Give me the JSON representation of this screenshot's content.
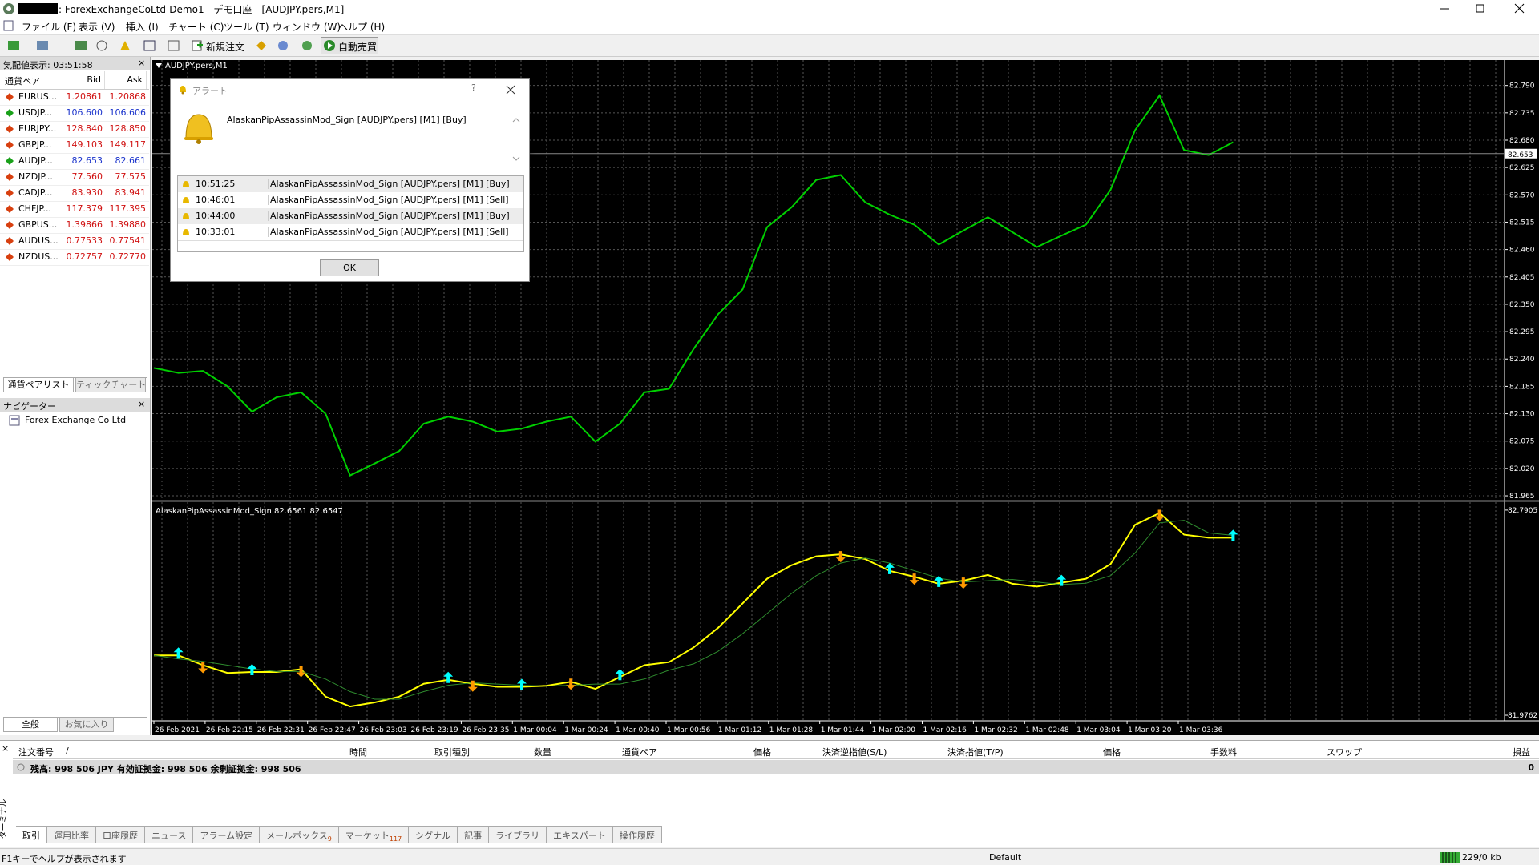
{
  "window": {
    "title": ": ForexExchangeCoLtd-Demo1 - デモ口座 - [AUDJPY.pers,M1]"
  },
  "menu": [
    "ファイル (F)",
    "表示 (V)",
    "挿入 (I)",
    "チャート (C)",
    "ツール (T)",
    "ウィンドウ (W)",
    "ヘルプ (H)"
  ],
  "toolbar": {
    "new_order": "新規注文",
    "auto_trading": "自動売買"
  },
  "market_watch": {
    "title": "気配値表示: 03:51:58",
    "columns": [
      "通貨ペア",
      "Bid",
      "Ask"
    ],
    "rows": [
      {
        "symbol": "EURUS...",
        "bid": "1.20861",
        "ask": "1.20868",
        "trend": "down"
      },
      {
        "symbol": "USDJP...",
        "bid": "106.600",
        "ask": "106.606",
        "trend": "up"
      },
      {
        "symbol": "EURJPY...",
        "bid": "128.840",
        "ask": "128.850",
        "trend": "down"
      },
      {
        "symbol": "GBPJP...",
        "bid": "149.103",
        "ask": "149.117",
        "trend": "down"
      },
      {
        "symbol": "AUDJP...",
        "bid": "82.653",
        "ask": "82.661",
        "trend": "up"
      },
      {
        "symbol": "NZDJP...",
        "bid": "77.560",
        "ask": "77.575",
        "trend": "down"
      },
      {
        "symbol": "CADJP...",
        "bid": "83.930",
        "ask": "83.941",
        "trend": "down"
      },
      {
        "symbol": "CHFJP...",
        "bid": "117.379",
        "ask": "117.395",
        "trend": "down"
      },
      {
        "symbol": "GBPUS...",
        "bid": "1.39866",
        "ask": "1.39880",
        "trend": "down"
      },
      {
        "symbol": "AUDUS...",
        "bid": "0.77533",
        "ask": "0.77541",
        "trend": "down"
      },
      {
        "symbol": "NZDUS...",
        "bid": "0.72757",
        "ask": "0.72770",
        "trend": "down"
      }
    ],
    "tabs": [
      "通貨ペアリスト",
      "ティックチャート"
    ]
  },
  "navigator": {
    "title": "ナビゲーター",
    "item": "Forex Exchange Co Ltd",
    "tabs": [
      "全般",
      "お気に入り"
    ]
  },
  "chart_data": [
    {
      "type": "line",
      "title": "AUDJPY.pers,M1",
      "grid": true,
      "series": [
        {
          "color": "#00d000",
          "values": [
            82.222,
            82.212,
            82.216,
            82.185,
            82.134,
            82.163,
            82.173,
            82.13,
            82.006,
            82.03,
            82.055,
            82.11,
            82.124,
            82.114,
            82.094,
            82.1,
            82.114,
            82.124,
            82.074,
            82.11,
            82.173,
            82.18,
            82.26,
            82.33,
            82.38,
            82.505,
            82.545,
            82.6,
            82.61,
            82.555,
            82.53,
            82.51,
            82.47,
            82.498,
            82.525,
            82.495,
            82.465,
            82.488,
            82.51,
            82.58,
            82.7,
            82.77,
            82.66,
            82.65,
            82.676
          ]
        }
      ],
      "current_price": 82.653,
      "ylim": [
        81.957,
        82.841
      ],
      "yticks": [
        {
          "value": 82.79,
          "label": "82.790"
        },
        {
          "value": 82.735,
          "label": "82.735"
        },
        {
          "value": 82.68,
          "label": "82.680"
        },
        {
          "value": 82.625,
          "label": "82.625"
        },
        {
          "value": 82.57,
          "label": "82.570"
        },
        {
          "value": 82.515,
          "label": "82.515"
        },
        {
          "value": 82.46,
          "label": "82.460"
        },
        {
          "value": 82.405,
          "label": "82.405"
        },
        {
          "value": 82.35,
          "label": "82.350"
        },
        {
          "value": 82.295,
          "label": "82.295"
        },
        {
          "value": 82.24,
          "label": "82.240"
        },
        {
          "value": 82.185,
          "label": "82.185"
        },
        {
          "value": 82.13,
          "label": "82.130"
        },
        {
          "value": 82.075,
          "label": "82.075"
        },
        {
          "value": 82.02,
          "label": "82.020"
        },
        {
          "value": 81.965,
          "label": "81.965"
        }
      ],
      "time_labels": [
        "26 Feb 2021",
        "26 Feb 22:15",
        "26 Feb 22:31",
        "26 Feb 22:47",
        "26 Feb 23:03",
        "26 Feb 23:19",
        "26 Feb 23:35",
        "1 Mar 00:04",
        "1 Mar 00:24",
        "1 Mar 00:40",
        "1 Mar 00:56",
        "1 Mar 01:12",
        "1 Mar 01:28",
        "1 Mar 01:44",
        "1 Mar 02:00",
        "1 Mar 02:16",
        "1 Mar 02:32",
        "1 Mar 02:48",
        "1 Mar 03:04",
        "1 Mar 03:20",
        "1 Mar 03:36"
      ]
    },
    {
      "type": "line",
      "title": "AlaskanPipAssassinMod_Sign",
      "legend_values": [
        82.6561,
        82.6547
      ],
      "series": [
        {
          "color": "#ffff00",
          "values": [
            82.214,
            82.214,
            82.175,
            82.144,
            82.148,
            82.148,
            82.159,
            82.05,
            82.011,
            82.027,
            82.05,
            82.101,
            82.117,
            82.101,
            82.089,
            82.089,
            82.093,
            82.109,
            82.081,
            82.128,
            82.175,
            82.187,
            82.245,
            82.323,
            82.42,
            82.518,
            82.572,
            82.607,
            82.615,
            82.596,
            82.549,
            82.526,
            82.498,
            82.51,
            82.533,
            82.498,
            82.487,
            82.502,
            82.518,
            82.576,
            82.732,
            82.779,
            82.693,
            82.681,
            82.681
          ]
        },
        {
          "color": "#2e8b2e",
          "values": [
            82.214,
            82.2,
            82.19,
            82.175,
            82.16,
            82.15,
            82.15,
            82.12,
            82.07,
            82.04,
            82.04,
            82.07,
            82.095,
            82.105,
            82.1,
            82.095,
            82.092,
            82.095,
            82.1,
            82.1,
            82.12,
            82.155,
            82.18,
            82.23,
            82.3,
            82.38,
            82.46,
            82.53,
            82.58,
            82.6,
            82.58,
            82.55,
            82.52,
            82.505,
            82.51,
            82.515,
            82.505,
            82.495,
            82.5,
            82.53,
            82.62,
            82.74,
            82.75,
            82.7,
            82.69
          ]
        },
        {
          "color": "#00ffff",
          "marker": "arrow-up",
          "values": [
            null,
            82.214,
            null,
            null,
            82.148,
            null,
            null,
            null,
            null,
            null,
            null,
            null,
            82.117,
            null,
            null,
            82.089,
            null,
            null,
            null,
            82.128,
            null,
            null,
            null,
            null,
            null,
            null,
            null,
            null,
            null,
            null,
            82.549,
            null,
            82.498,
            null,
            null,
            null,
            null,
            82.502,
            null,
            null,
            null,
            null,
            null,
            null,
            82.681
          ]
        },
        {
          "color": "#ff9900",
          "marker": "arrow-down",
          "values": [
            null,
            null,
            82.175,
            null,
            null,
            null,
            82.159,
            null,
            null,
            null,
            null,
            null,
            null,
            82.101,
            null,
            null,
            null,
            82.109,
            null,
            null,
            null,
            null,
            null,
            null,
            null,
            null,
            null,
            null,
            82.615,
            null,
            null,
            82.526,
            null,
            82.51,
            null,
            null,
            null,
            null,
            null,
            null,
            null,
            82.779,
            null,
            null,
            null
          ]
        }
      ],
      "ylim": [
        81.954,
        82.822
      ],
      "yticks": [
        82.7905,
        81.9762
      ]
    }
  ],
  "alert": {
    "title": "アラート",
    "message": "AlaskanPipAssassinMod_Sign  [AUDJPY.pers] [M1] [Buy]",
    "log": [
      {
        "time": "10:51:25",
        "message": "AlaskanPipAssassinMod_Sign  [AUDJPY.pers] [M1] [Buy]"
      },
      {
        "time": "10:46:01",
        "message": "AlaskanPipAssassinMod_Sign  [AUDJPY.pers] [M1] [Sell]"
      },
      {
        "time": "10:44:00",
        "message": "AlaskanPipAssassinMod_Sign  [AUDJPY.pers] [M1] [Buy]"
      },
      {
        "time": "10:33:01",
        "message": "AlaskanPipAssassinMod_Sign  [AUDJPY.pers] [M1] [Sell]"
      }
    ],
    "button": "OK"
  },
  "terminal": {
    "side_label": "ターミナル",
    "sort_mark": "/",
    "columns": [
      "注文番号",
      "時間",
      "取引種別",
      "数量",
      "通貨ペア",
      "価格",
      "決済逆指値(S/L)",
      "決済指値(T/P)",
      "価格",
      "手数料",
      "スワップ",
      "損益"
    ],
    "balance": "残高: 998 506 JPY  有効証拠金: 998 506  余剰証拠金: 998 506",
    "profit": 0,
    "tabs": [
      {
        "label": "取引"
      },
      {
        "label": "運用比率"
      },
      {
        "label": "口座履歴"
      },
      {
        "label": "ニュース"
      },
      {
        "label": "アラーム設定"
      },
      {
        "label": "メールボックス",
        "badge": 9
      },
      {
        "label": "マーケット",
        "badge": 117
      },
      {
        "label": "シグナル"
      },
      {
        "label": "記事"
      },
      {
        "label": "ライブラリ"
      },
      {
        "label": "エキスパート"
      },
      {
        "label": "操作履歴"
      }
    ]
  },
  "status": {
    "help": "F1キーでヘルプが表示されます",
    "profile": "Default",
    "traffic": "229/0 kb"
  }
}
